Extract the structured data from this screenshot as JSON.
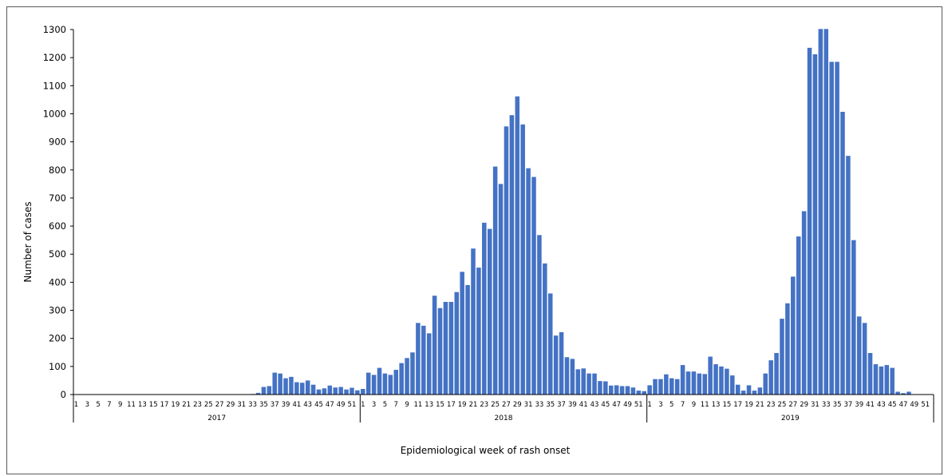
{
  "chart_data": {
    "type": "bar",
    "xlabel": "Epidemiological week of rash onset",
    "ylabel": "Number of cases",
    "ylim": [
      0,
      1300
    ],
    "yticks": [
      0,
      100,
      200,
      300,
      400,
      500,
      600,
      700,
      800,
      900,
      1000,
      1100,
      1200,
      1300
    ],
    "bar_color": "#4472C4",
    "grid": false,
    "legend": "none",
    "groups": [
      {
        "year": "2017",
        "week_labels": [
          "1",
          "3",
          "5",
          "7",
          "9",
          "11",
          "13",
          "15",
          "17",
          "19",
          "21",
          "23",
          "25",
          "27",
          "29",
          "31",
          "33",
          "35",
          "37",
          "39",
          "41",
          "43",
          "45",
          "47",
          "49",
          "51"
        ],
        "values": [
          0,
          0,
          0,
          0,
          0,
          0,
          0,
          0,
          0,
          0,
          0,
          0,
          0,
          0,
          0,
          0,
          0,
          0,
          0,
          0,
          0,
          0,
          0,
          0,
          0,
          0,
          0,
          0,
          0,
          0,
          0,
          0,
          2,
          6,
          27,
          30,
          78,
          75,
          58,
          63,
          44,
          42,
          50,
          35,
          18,
          22,
          32,
          25,
          27,
          18,
          24,
          15
        ]
      },
      {
        "year": "2018",
        "week_labels": [
          "1",
          "3",
          "5",
          "7",
          "9",
          "11",
          "13",
          "15",
          "17",
          "19",
          "21",
          "23",
          "25",
          "27",
          "29",
          "31",
          "33",
          "35",
          "37",
          "39",
          "41",
          "43",
          "45",
          "47",
          "49",
          "51"
        ],
        "values": [
          20,
          78,
          70,
          95,
          75,
          70,
          88,
          112,
          130,
          150,
          255,
          245,
          218,
          352,
          308,
          330,
          330,
          365,
          437,
          390,
          520,
          452,
          612,
          590,
          812,
          750,
          955,
          995,
          1062,
          962,
          806,
          775,
          568,
          467,
          360,
          210,
          222,
          133,
          127,
          90,
          93,
          75,
          75,
          48,
          47,
          32,
          33,
          30,
          30,
          25,
          14,
          12
        ]
      },
      {
        "year": "2019",
        "week_labels": [
          "1",
          "3",
          "5",
          "7",
          "9",
          "11",
          "13",
          "15",
          "17",
          "19",
          "21",
          "23",
          "25",
          "27",
          "29",
          "31",
          "33",
          "35",
          "37",
          "39",
          "41",
          "43",
          "45",
          "47",
          "49",
          "51"
        ],
        "values": [
          33,
          55,
          55,
          72,
          58,
          55,
          105,
          82,
          82,
          75,
          73,
          135,
          108,
          100,
          92,
          68,
          35,
          14,
          33,
          14,
          25,
          75,
          122,
          148,
          270,
          325,
          420,
          563,
          653,
          1235,
          1212,
          1302,
          1302,
          1185,
          1185,
          1007,
          850,
          550,
          278,
          255,
          148,
          108,
          100,
          105,
          95,
          10,
          5,
          10,
          0,
          0,
          0,
          0
        ]
      }
    ]
  }
}
